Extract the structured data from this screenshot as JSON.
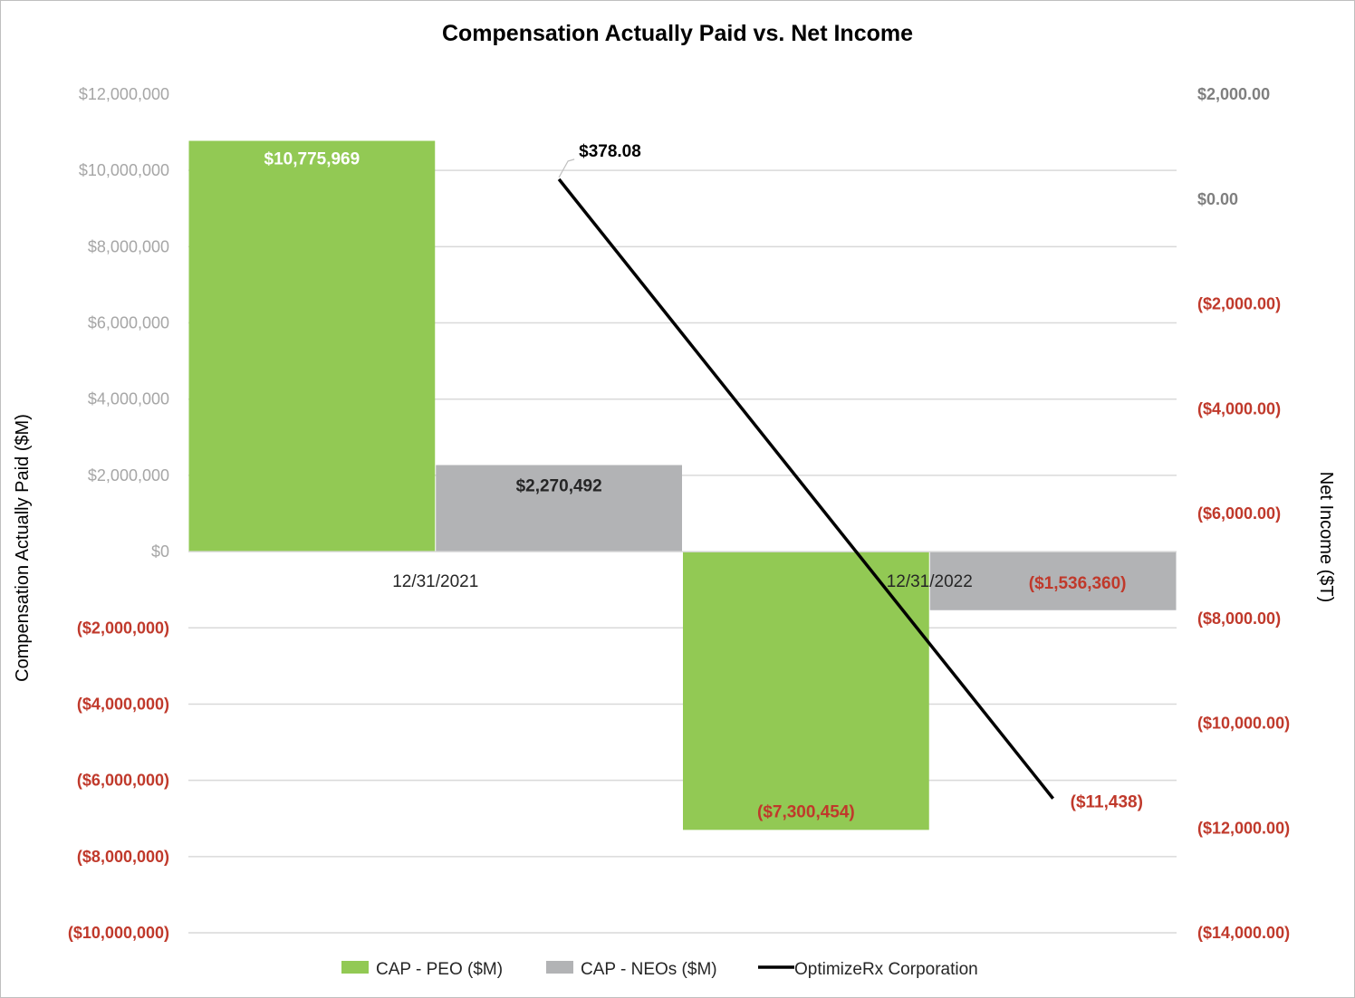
{
  "chart_data": {
    "type": "bar",
    "title": "Compensation Actually Paid vs. Net Income",
    "categories": [
      "12/31/2021",
      "12/31/2022"
    ],
    "series": [
      {
        "name": "CAP - PEO ($M)",
        "kind": "bar",
        "axis": "left",
        "color": "#92c954",
        "values": [
          10775969,
          -7300454
        ],
        "labels": [
          "$10,775,969",
          "($7,300,454)"
        ]
      },
      {
        "name": "CAP - NEOs ($M)",
        "kind": "bar",
        "axis": "left",
        "color": "#b2b3b5",
        "values": [
          2270492,
          -1536360
        ],
        "labels": [
          "$2,270,492",
          "($1,536,360)"
        ]
      },
      {
        "name": "OptimizeRx Corporation",
        "kind": "line",
        "axis": "right",
        "color": "#000000",
        "values": [
          378.08,
          -11438
        ],
        "labels": [
          "$378.08",
          "($11,438)"
        ]
      }
    ],
    "y_left": {
      "label": "Compensation Actually Paid ($M)",
      "range": [
        -10000000,
        12000000
      ],
      "ticks": [
        {
          "value": 12000000,
          "label": "$12,000,000"
        },
        {
          "value": 10000000,
          "label": "$10,000,000"
        },
        {
          "value": 8000000,
          "label": "$8,000,000"
        },
        {
          "value": 6000000,
          "label": "$6,000,000"
        },
        {
          "value": 4000000,
          "label": "$4,000,000"
        },
        {
          "value": 2000000,
          "label": "$2,000,000"
        },
        {
          "value": 0,
          "label": "$0"
        },
        {
          "value": -2000000,
          "label": "($2,000,000)"
        },
        {
          "value": -4000000,
          "label": "($4,000,000)"
        },
        {
          "value": -6000000,
          "label": "($6,000,000)"
        },
        {
          "value": -8000000,
          "label": "($8,000,000)"
        },
        {
          "value": -10000000,
          "label": "($10,000,000)"
        }
      ]
    },
    "y_right": {
      "label": "Net Income ($T)",
      "range": [
        -14000,
        2000
      ],
      "ticks": [
        {
          "value": 2000,
          "label": "$2,000.00"
        },
        {
          "value": 0,
          "label": "$0.00"
        },
        {
          "value": -2000,
          "label": "($2,000.00)"
        },
        {
          "value": -4000,
          "label": "($4,000.00)"
        },
        {
          "value": -6000,
          "label": "($6,000.00)"
        },
        {
          "value": -8000,
          "label": "($8,000.00)"
        },
        {
          "value": -10000,
          "label": "($10,000.00)"
        },
        {
          "value": -12000,
          "label": "($12,000.00)"
        },
        {
          "value": -14000,
          "label": "($14,000.00)"
        }
      ]
    },
    "grid": true,
    "legend_position": "bottom",
    "colors": {
      "positive_tick": "#a6a6a6",
      "negative_tick": "#c0392b",
      "negative_label": "#c0392b",
      "gridline": "#d9d9d9"
    }
  }
}
